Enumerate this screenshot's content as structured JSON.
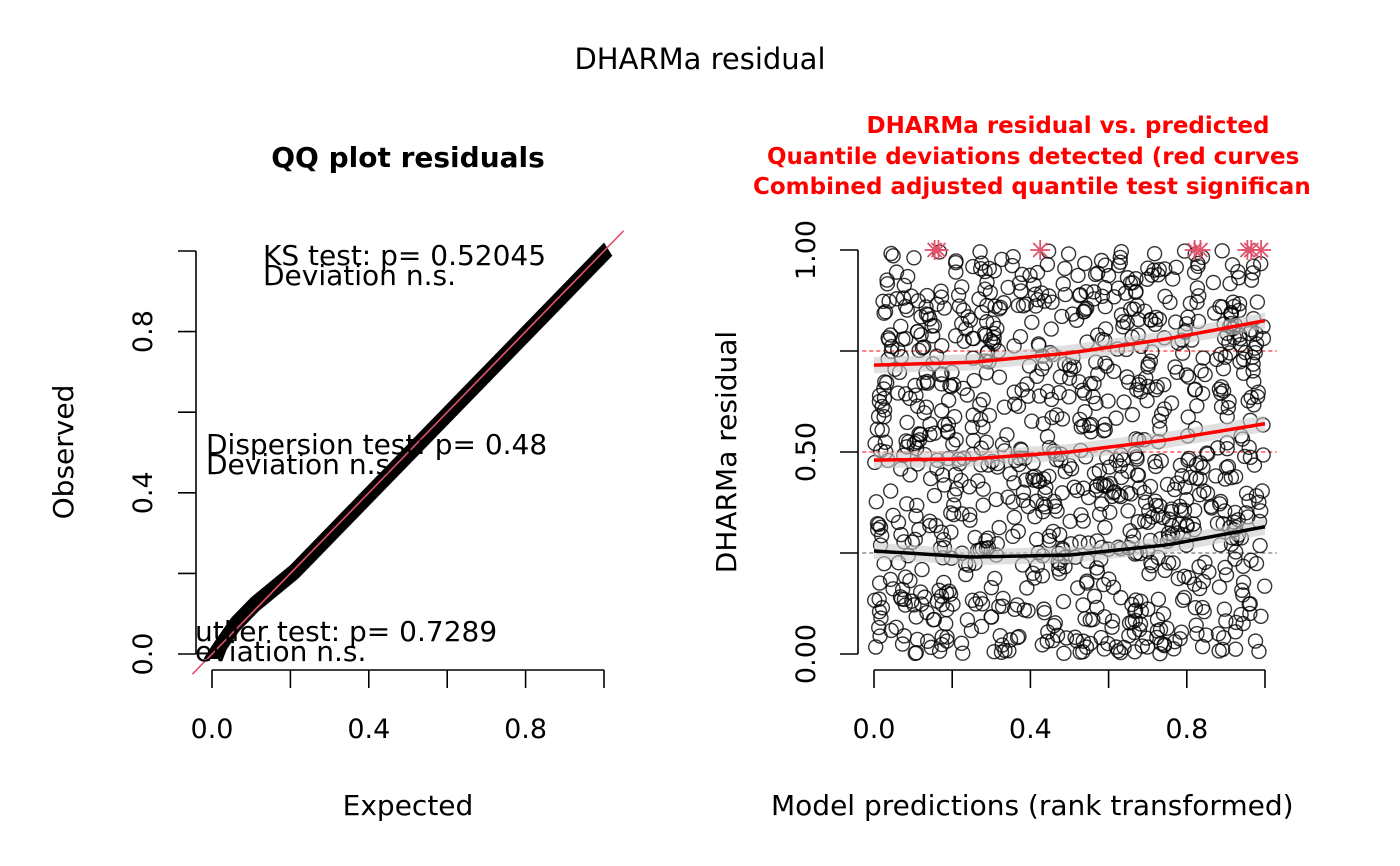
{
  "figure": {
    "title": "DHARMa residual"
  },
  "chart_data": [
    {
      "type": "scatter",
      "title": "QQ plot residuals",
      "xlabel": "Expected",
      "ylabel": "Observed",
      "xlim": [
        0,
        1
      ],
      "ylim": [
        0,
        1
      ],
      "x_ticks": [
        "0.0",
        "0.4",
        "0.8"
      ],
      "x_tick_values": [
        0,
        0.2,
        0.4,
        0.6,
        0.8,
        1.0
      ],
      "y_ticks": [
        "0.0",
        "0.4",
        "0.8"
      ],
      "y_tick_values": [
        0,
        0.2,
        0.4,
        0.6,
        0.8,
        1.0
      ],
      "reference_line": {
        "intercept": 0,
        "slope": 1,
        "color": "#df536b"
      },
      "point_color": "#000000",
      "qq_curve": {
        "x": [
          0.0,
          0.05,
          0.1,
          0.15,
          0.2,
          0.25,
          0.3,
          0.35,
          0.4,
          0.45,
          0.5,
          0.55,
          0.6,
          0.65,
          0.7,
          0.75,
          0.8,
          0.85,
          0.9,
          0.95,
          1.0
        ],
        "y": [
          0.0,
          0.07,
          0.12,
          0.16,
          0.2,
          0.25,
          0.3,
          0.35,
          0.4,
          0.45,
          0.5,
          0.55,
          0.6,
          0.65,
          0.7,
          0.75,
          0.8,
          0.85,
          0.9,
          0.95,
          1.0
        ]
      },
      "tests": [
        {
          "line1": "KS test: p= 0.52045",
          "line2": "Deviation  n.s."
        },
        {
          "line1": "Dispersion test: p= 0.48",
          "line2": "Deviation  n.s."
        },
        {
          "line1": "utlier test: p= 0.7289",
          "line2": "eviation  n.s."
        }
      ]
    },
    {
      "type": "scatter",
      "title": "DHARMa residual vs. predicted",
      "subtitle_lines": [
        "Quantile deviations detected (red curves",
        "Combined adjusted quantile test significan"
      ],
      "title_color": "#ff0000",
      "xlabel": "Model predictions (rank transformed)",
      "ylabel": "DHARMa residual",
      "xlim": [
        0,
        1
      ],
      "ylim": [
        0,
        1
      ],
      "x_ticks": [
        "0.0",
        "0.4",
        "0.8"
      ],
      "x_tick_values": [
        0,
        0.2,
        0.4,
        0.6,
        0.8,
        1.0
      ],
      "y_ticks": [
        "0.00",
        "0.50",
        "1.00"
      ],
      "y_tick_values": [
        0,
        0.25,
        0.5,
        0.75,
        1.0
      ],
      "reference_lines": [
        {
          "y": 0.25,
          "color": "#555555"
        },
        {
          "y": 0.5,
          "color": "#ff0000"
        },
        {
          "y": 0.75,
          "color": "#ff0000"
        }
      ],
      "quantile_curves": [
        {
          "quantile": 0.25,
          "color": "#000000",
          "x": [
            0,
            0.25,
            0.5,
            0.75,
            1.0
          ],
          "y": [
            0.255,
            0.24,
            0.245,
            0.27,
            0.315
          ]
        },
        {
          "quantile": 0.5,
          "color": "#ff0000",
          "x": [
            0,
            0.25,
            0.5,
            0.75,
            1.0
          ],
          "y": [
            0.48,
            0.483,
            0.5,
            0.53,
            0.57
          ]
        },
        {
          "quantile": 0.75,
          "color": "#ff0000",
          "x": [
            0,
            0.25,
            0.5,
            0.75,
            1.0
          ],
          "y": [
            0.715,
            0.722,
            0.745,
            0.78,
            0.825
          ]
        }
      ],
      "outliers": {
        "color": "#df536b",
        "x": [
          0.155,
          0.165,
          0.425,
          0.82,
          0.835,
          0.955,
          0.965,
          0.99
        ],
        "y": [
          1.0,
          1.0,
          1.0,
          1.0,
          1.0,
          1.0,
          1.0,
          1.0
        ]
      },
      "point_count": 1000
    }
  ]
}
